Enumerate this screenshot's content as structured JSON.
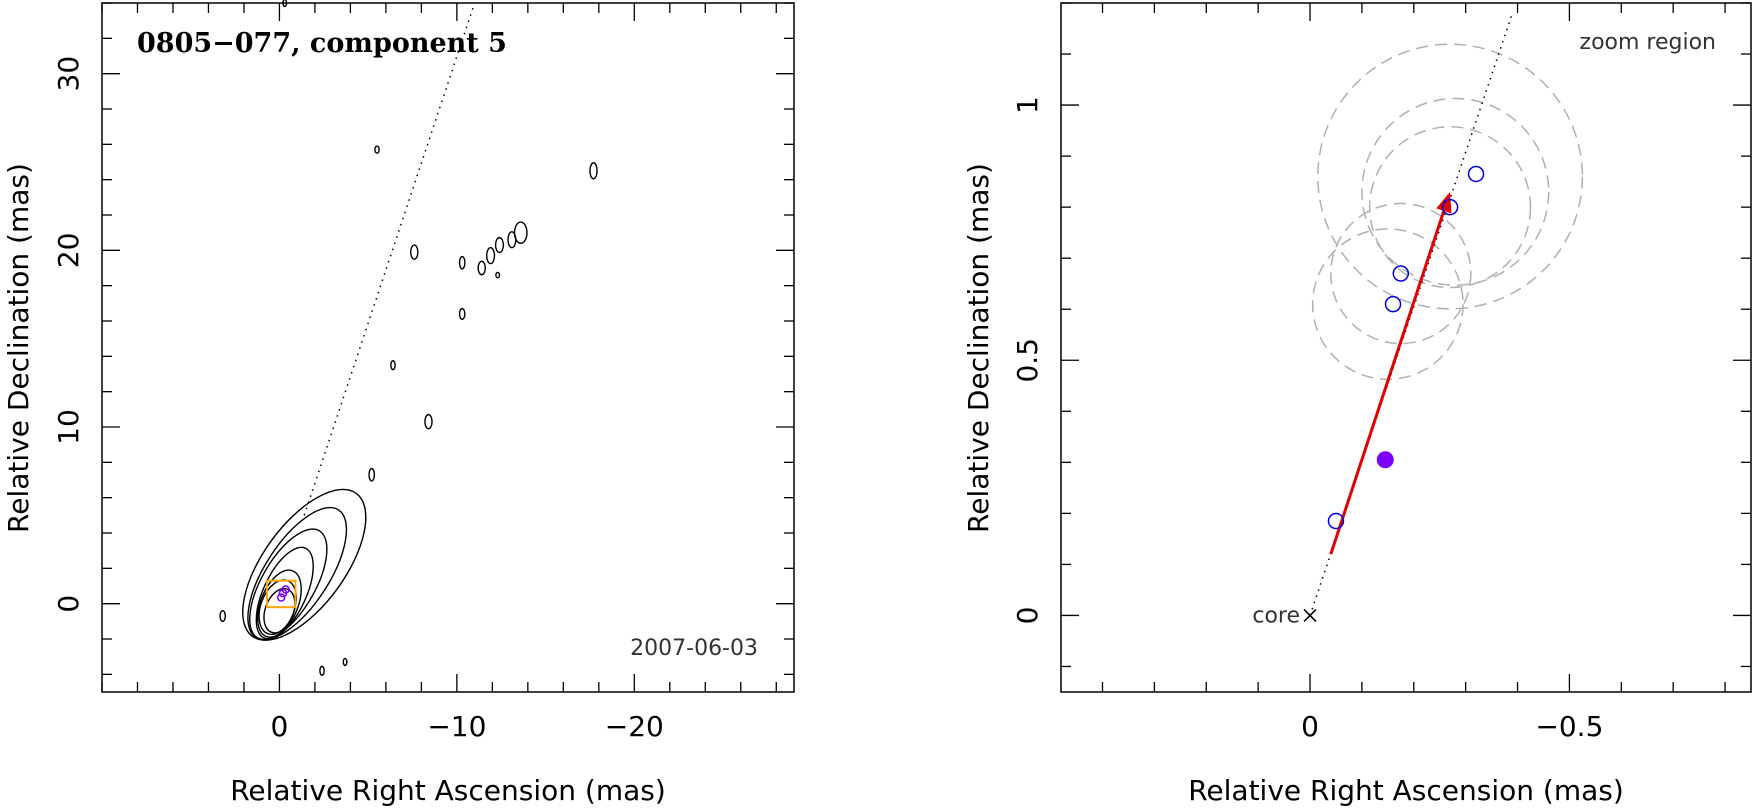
{
  "chart_data": [
    {
      "type": "scatter",
      "title": "0805−077, component 5",
      "date": "2007-06-03",
      "xlabel": "Relative Right Ascension (mas)",
      "ylabel": "Relative Declination (mas)",
      "xlim": [
        10,
        -29
      ],
      "ylim": [
        -5,
        34
      ],
      "xticks": [
        0,
        -10,
        -20
      ],
      "yticks": [
        0,
        10,
        20,
        30
      ],
      "x_minor_step": 2,
      "y_minor_step": 2,
      "colors": {
        "box": "#ffa500",
        "contour": "#000000",
        "marker": "#7b00ff"
      },
      "direction_line": {
        "from": [
          -1.4,
          5.0
        ],
        "to": [
          -11.0,
          34.0
        ]
      },
      "core_contours": [
        {
          "x": 0.0,
          "y": -0.4,
          "rx": 0.8,
          "ry": 1.3,
          "angle": 20
        },
        {
          "x": 0.1,
          "y": -0.2,
          "rx": 0.95,
          "ry": 1.6,
          "angle": 20
        },
        {
          "x": 0.0,
          "y": 0.0,
          "rx": 1.05,
          "ry": 2.0,
          "angle": 22
        },
        {
          "x": -0.3,
          "y": 0.6,
          "rx": 1.2,
          "ry": 2.8,
          "angle": 25
        },
        {
          "x": -0.5,
          "y": 1.1,
          "rx": 1.5,
          "ry": 3.5,
          "angle": 30
        },
        {
          "x": -1.0,
          "y": 1.7,
          "rx": 1.8,
          "ry": 4.3,
          "angle": 33
        },
        {
          "x": -1.4,
          "y": 2.2,
          "rx": 2.3,
          "ry": 5.0,
          "angle": 36
        }
      ],
      "isolated_contours": [
        {
          "x": 3.2,
          "y": -0.7,
          "rx": 0.15,
          "ry": 0.3
        },
        {
          "x": -5.5,
          "y": 25.7,
          "rx": 0.12,
          "ry": 0.2
        },
        {
          "x": -17.7,
          "y": 24.5,
          "rx": 0.2,
          "ry": 0.45
        },
        {
          "x": -7.6,
          "y": 19.9,
          "rx": 0.2,
          "ry": 0.4
        },
        {
          "x": -10.3,
          "y": 19.3,
          "rx": 0.15,
          "ry": 0.35
        },
        {
          "x": -11.4,
          "y": 19.0,
          "rx": 0.2,
          "ry": 0.38
        },
        {
          "x": -11.9,
          "y": 19.7,
          "rx": 0.22,
          "ry": 0.45
        },
        {
          "x": -12.4,
          "y": 20.3,
          "rx": 0.22,
          "ry": 0.42
        },
        {
          "x": -12.3,
          "y": 18.6,
          "rx": 0.1,
          "ry": 0.15
        },
        {
          "x": -13.1,
          "y": 20.6,
          "rx": 0.22,
          "ry": 0.45
        },
        {
          "x": -13.6,
          "y": 21.0,
          "rx": 0.35,
          "ry": 0.6
        },
        {
          "x": -10.3,
          "y": 16.4,
          "rx": 0.15,
          "ry": 0.3
        },
        {
          "x": -6.4,
          "y": 13.5,
          "rx": 0.12,
          "ry": 0.25
        },
        {
          "x": -8.4,
          "y": 10.3,
          "rx": 0.2,
          "ry": 0.4
        },
        {
          "x": -5.2,
          "y": 7.3,
          "rx": 0.15,
          "ry": 0.35
        },
        {
          "x": -2.4,
          "y": -3.8,
          "rx": 0.12,
          "ry": 0.25
        },
        {
          "x": -3.7,
          "y": -3.3,
          "rx": 0.1,
          "ry": 0.2
        },
        {
          "x": -0.3,
          "y": 34.0,
          "rx": 0.1,
          "ry": 0.2
        }
      ],
      "zoom_box": {
        "x0": 0.7,
        "x1": -0.9,
        "y0": -0.2,
        "y1": 1.3
      },
      "markers": [
        {
          "x": -0.2,
          "y": 0.6
        },
        {
          "x": -0.1,
          "y": 0.35
        },
        {
          "x": -0.35,
          "y": 0.8
        }
      ]
    },
    {
      "type": "scatter",
      "annotation": "zoom region",
      "core_label": "core",
      "xlabel": "Relative Right Ascension (mas)",
      "ylabel": "Relative Declination (mas)",
      "xlim": [
        0.48,
        -0.85
      ],
      "ylim": [
        -0.15,
        1.2
      ],
      "xticks": [
        0,
        -0.5
      ],
      "yticks": [
        0,
        0.5,
        1
      ],
      "x_minor_step": 0.1,
      "y_minor_step": 0.1,
      "colors": {
        "arrow": "#e00000",
        "open_marker": "#0000dd",
        "filled_marker": "#7b00ff",
        "circle": "#b0b0b0"
      },
      "core": {
        "x": 0.0,
        "y": 0.0
      },
      "direction_line": {
        "from": [
          0.0,
          0.0
        ],
        "to": [
          -0.39,
          1.18
        ]
      },
      "arrow": {
        "from": [
          -0.04,
          0.12
        ],
        "to": [
          -0.27,
          0.83
        ]
      },
      "open_points": [
        {
          "x": -0.05,
          "y": 0.185
        },
        {
          "x": -0.16,
          "y": 0.61
        },
        {
          "x": -0.175,
          "y": 0.67
        },
        {
          "x": -0.27,
          "y": 0.8
        },
        {
          "x": -0.32,
          "y": 0.865
        }
      ],
      "filled_points": [
        {
          "x": -0.145,
          "y": 0.305
        }
      ],
      "uncertainty_circles": [
        {
          "x": -0.15,
          "y": 0.61,
          "r": 0.145
        },
        {
          "x": -0.175,
          "y": 0.67,
          "r": 0.135
        },
        {
          "x": -0.27,
          "y": 0.8,
          "r": 0.155
        },
        {
          "x": -0.27,
          "y": 0.86,
          "r": 0.255
        },
        {
          "x": -0.28,
          "y": 0.83,
          "r": 0.18
        }
      ]
    }
  ]
}
